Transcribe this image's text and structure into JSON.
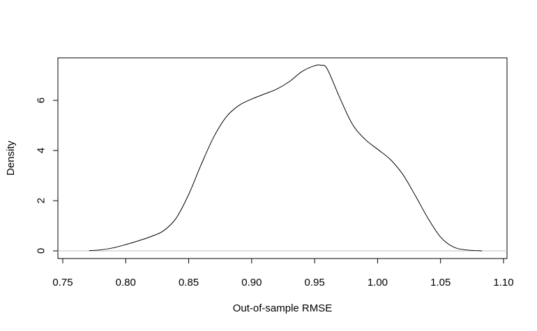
{
  "chart_data": {
    "type": "line",
    "title": "",
    "xlabel": "Out-of-sample RMSE",
    "ylabel": "Density",
    "xlim": [
      0.75,
      1.1
    ],
    "ylim": [
      0,
      7.4
    ],
    "x_ticks": [
      "0.75",
      "0.80",
      "0.85",
      "0.90",
      "0.95",
      "1.00",
      "1.05",
      "1.10"
    ],
    "y_ticks": [
      "0",
      "2",
      "4",
      "6"
    ],
    "grid": false,
    "legend": "none",
    "baseline_color": "#bebebe",
    "line_color": "#000000",
    "series": [
      {
        "x": [
          0.771,
          0.78,
          0.79,
          0.8,
          0.81,
          0.82,
          0.83,
          0.84,
          0.85,
          0.86,
          0.87,
          0.88,
          0.89,
          0.9,
          0.91,
          0.92,
          0.93,
          0.94,
          0.95,
          0.955,
          0.96,
          0.97,
          0.98,
          0.99,
          1.0,
          1.01,
          1.02,
          1.03,
          1.04,
          1.05,
          1.06,
          1.07,
          1.083
        ],
        "y": [
          0.01,
          0.04,
          0.12,
          0.25,
          0.4,
          0.57,
          0.8,
          1.3,
          2.25,
          3.45,
          4.55,
          5.35,
          5.8,
          6.05,
          6.25,
          6.45,
          6.75,
          7.15,
          7.38,
          7.4,
          7.25,
          6.1,
          5.05,
          4.45,
          4.05,
          3.65,
          3.05,
          2.2,
          1.3,
          0.55,
          0.16,
          0.04,
          0.0
        ]
      }
    ]
  }
}
